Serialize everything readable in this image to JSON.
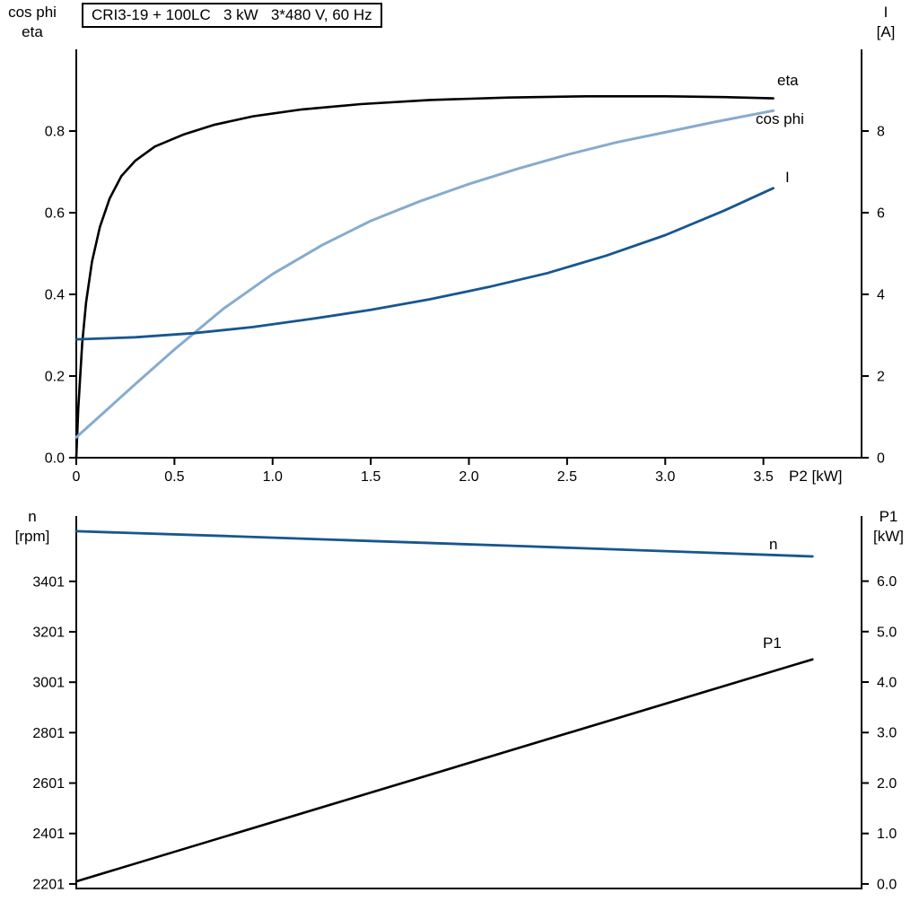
{
  "colors": {
    "black": "#000000",
    "light_blue": "#87abce",
    "dark_blue": "#17568f"
  },
  "chart_data": [
    {
      "id": "motor-top-chart",
      "type": "line",
      "title": "CRI3-19 + 100LC   3 kW   3*480 V, 60 Hz",
      "x_axis": {
        "label": "P2 [kW]",
        "range": [
          0,
          4.0
        ],
        "ticks": [
          0,
          0.5,
          1.0,
          1.5,
          2.0,
          2.5,
          3.0,
          3.5
        ],
        "tick_labels": [
          "0",
          "0.5",
          "1.0",
          "1.5",
          "2.0",
          "2.5",
          "3.0",
          "3.5"
        ]
      },
      "y_left": {
        "label_lines": [
          "cos phi",
          "eta"
        ],
        "range": [
          0,
          1.0
        ],
        "ticks": [
          0.0,
          0.2,
          0.4,
          0.6,
          0.8
        ],
        "tick_labels": [
          "0.0",
          "0.2",
          "0.4",
          "0.6",
          "0.8"
        ]
      },
      "y_right": {
        "label_lines": [
          "I",
          "[A]"
        ],
        "range": [
          0,
          10
        ],
        "ticks": [
          0,
          2,
          4,
          6,
          8
        ],
        "tick_labels": [
          "0",
          "2",
          "4",
          "6",
          "8"
        ]
      },
      "series": [
        {
          "name": "eta",
          "axis": "left",
          "color": "#000000",
          "width": 2.6,
          "x": [
            0,
            0.01,
            0.03,
            0.05,
            0.08,
            0.12,
            0.17,
            0.23,
            0.3,
            0.4,
            0.55,
            0.7,
            0.9,
            1.15,
            1.45,
            1.8,
            2.2,
            2.6,
            3.0,
            3.3,
            3.55
          ],
          "y": [
            0,
            0.12,
            0.28,
            0.38,
            0.48,
            0.565,
            0.635,
            0.69,
            0.727,
            0.762,
            0.792,
            0.815,
            0.836,
            0.853,
            0.866,
            0.876,
            0.882,
            0.885,
            0.885,
            0.883,
            0.88
          ]
        },
        {
          "name": "cos phi",
          "axis": "left",
          "color": "#87abce",
          "width": 3,
          "x": [
            0,
            0.15,
            0.3,
            0.5,
            0.75,
            1.0,
            1.25,
            1.5,
            1.75,
            2.0,
            2.25,
            2.5,
            2.75,
            3.0,
            3.25,
            3.55
          ],
          "y": [
            0.05,
            0.115,
            0.18,
            0.265,
            0.365,
            0.45,
            0.52,
            0.58,
            0.628,
            0.67,
            0.708,
            0.742,
            0.772,
            0.797,
            0.822,
            0.85
          ]
        },
        {
          "name": "I",
          "axis": "right",
          "color": "#17568f",
          "width": 2.8,
          "x": [
            0,
            0.3,
            0.6,
            0.9,
            1.2,
            1.5,
            1.8,
            2.1,
            2.4,
            2.7,
            3.0,
            3.3,
            3.55
          ],
          "y": [
            2.9,
            2.95,
            3.05,
            3.2,
            3.4,
            3.62,
            3.88,
            4.18,
            4.52,
            4.95,
            5.45,
            6.05,
            6.6
          ]
        }
      ]
    },
    {
      "id": "motor-bottom-chart",
      "type": "line",
      "title": "",
      "x_axis": {
        "label": "",
        "range": [
          0,
          4.0
        ],
        "ticks": [],
        "tick_labels": []
      },
      "y_left": {
        "label_lines": [
          "n",
          "[rpm]"
        ],
        "range": [
          2183,
          3660
        ],
        "ticks": [
          3401,
          3201,
          3001,
          2801,
          2601,
          2401,
          2201
        ],
        "tick_labels": [
          "3401",
          "3201",
          "3001",
          "2801",
          "2601",
          "2401",
          "2201"
        ]
      },
      "y_right": {
        "label_lines": [
          "P1",
          "[kW]"
        ],
        "range": [
          -0.09,
          7.29
        ],
        "ticks": [
          6.0,
          5.0,
          4.0,
          3.0,
          2.0,
          1.0,
          0.0
        ],
        "tick_labels": [
          "6.0",
          "5.0",
          "4.0",
          "3.0",
          "2.0",
          "1.0",
          "0.0"
        ]
      },
      "series": [
        {
          "name": "n",
          "axis": "left",
          "color": "#17568f",
          "width": 2.8,
          "x": [
            0,
            0.75,
            1.5,
            2.25,
            3.0,
            3.75
          ],
          "y": [
            3600,
            3581,
            3561,
            3541,
            3521,
            3500
          ]
        },
        {
          "name": "P1",
          "axis": "right",
          "color": "#000000",
          "width": 2.6,
          "x": [
            0,
            3.75
          ],
          "y": [
            0.05,
            4.45
          ]
        }
      ]
    }
  ]
}
